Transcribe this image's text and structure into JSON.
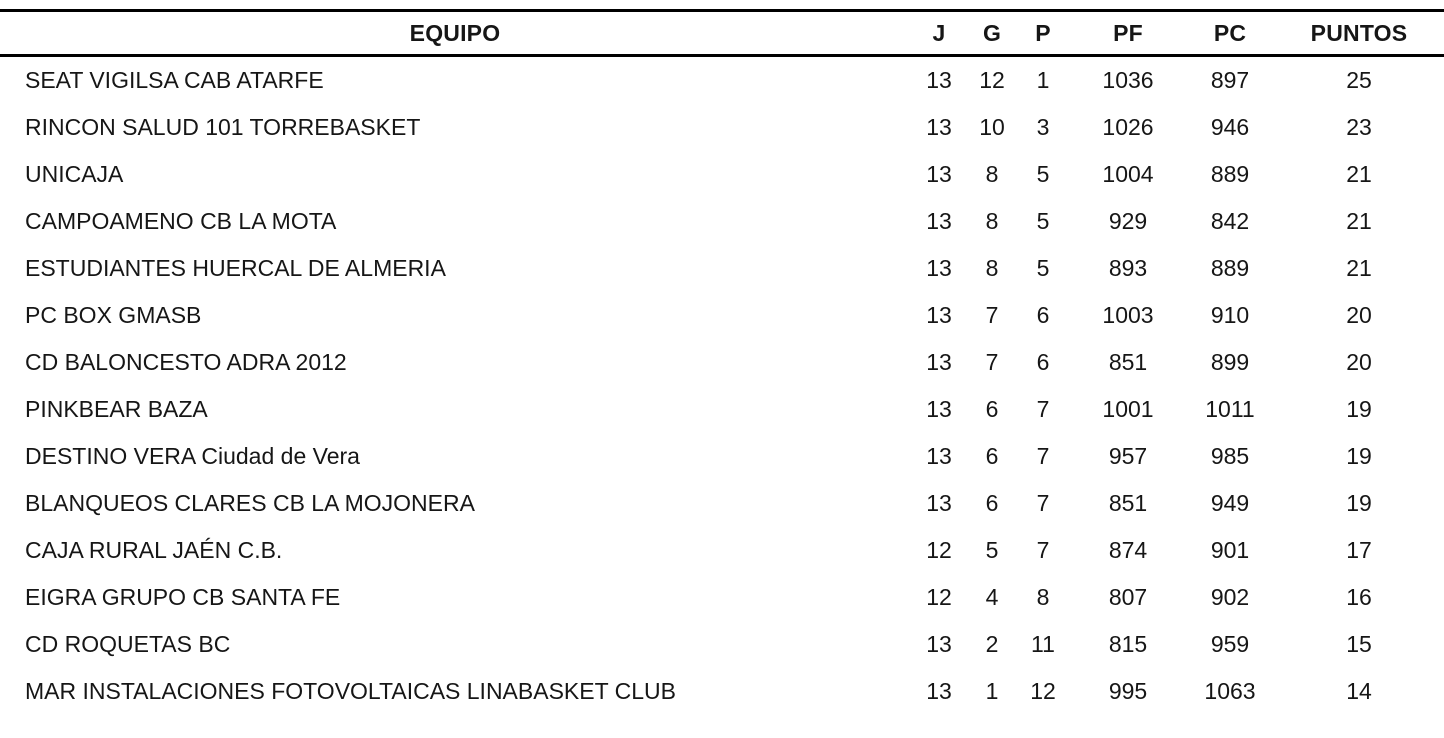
{
  "colors": {
    "background": "#ffffff",
    "text": "#161616",
    "rule": "#000000"
  },
  "table": {
    "headers": [
      "EQUIPO",
      "J",
      "G",
      "P",
      "PF",
      "PC",
      "PUNTOS"
    ],
    "rows": [
      {
        "team": "SEAT VIGILSA CAB ATARFE",
        "j": "13",
        "g": "12",
        "p": "1",
        "pf": "1036",
        "pc": "897",
        "puntos": "25"
      },
      {
        "team": "RINCON SALUD 101 TORREBASKET",
        "j": "13",
        "g": "10",
        "p": "3",
        "pf": "1026",
        "pc": "946",
        "puntos": "23"
      },
      {
        "team": "UNICAJA",
        "j": "13",
        "g": "8",
        "p": "5",
        "pf": "1004",
        "pc": "889",
        "puntos": "21"
      },
      {
        "team": "CAMPOAMENO CB LA MOTA",
        "j": "13",
        "g": "8",
        "p": "5",
        "pf": "929",
        "pc": "842",
        "puntos": "21"
      },
      {
        "team": "ESTUDIANTES HUERCAL DE ALMERIA",
        "j": "13",
        "g": "8",
        "p": "5",
        "pf": "893",
        "pc": "889",
        "puntos": "21"
      },
      {
        "team": "PC BOX GMASB",
        "j": "13",
        "g": "7",
        "p": "6",
        "pf": "1003",
        "pc": "910",
        "puntos": "20"
      },
      {
        "team": "CD BALONCESTO ADRA 2012",
        "j": "13",
        "g": "7",
        "p": "6",
        "pf": "851",
        "pc": "899",
        "puntos": "20"
      },
      {
        "team": "PINKBEAR BAZA",
        "j": "13",
        "g": "6",
        "p": "7",
        "pf": "1001",
        "pc": "1011",
        "puntos": "19"
      },
      {
        "team": "DESTINO VERA Ciudad de Vera",
        "j": "13",
        "g": "6",
        "p": "7",
        "pf": "957",
        "pc": "985",
        "puntos": "19"
      },
      {
        "team": "BLANQUEOS CLARES CB LA MOJONERA",
        "j": "13",
        "g": "6",
        "p": "7",
        "pf": "851",
        "pc": "949",
        "puntos": "19"
      },
      {
        "team": "CAJA RURAL JAÉN C.B.",
        "j": "12",
        "g": "5",
        "p": "7",
        "pf": "874",
        "pc": "901",
        "puntos": "17"
      },
      {
        "team": "EIGRA GRUPO CB SANTA FE",
        "j": "12",
        "g": "4",
        "p": "8",
        "pf": "807",
        "pc": "902",
        "puntos": "16"
      },
      {
        "team": "CD ROQUETAS BC",
        "j": "13",
        "g": "2",
        "p": "11",
        "pf": "815",
        "pc": "959",
        "puntos": "15"
      },
      {
        "team": "MAR INSTALACIONES FOTOVOLTAICAS LINABASKET CLUB",
        "j": "13",
        "g": "1",
        "p": "12",
        "pf": "995",
        "pc": "1063",
        "puntos": "14"
      }
    ]
  },
  "chart_data": {
    "type": "table",
    "title": "",
    "columns": [
      "EQUIPO",
      "J",
      "G",
      "P",
      "PF",
      "PC",
      "PUNTOS"
    ],
    "rows": [
      [
        "SEAT VIGILSA CAB ATARFE",
        13,
        12,
        1,
        1036,
        897,
        25
      ],
      [
        "RINCON SALUD 101 TORREBASKET",
        13,
        10,
        3,
        1026,
        946,
        23
      ],
      [
        "UNICAJA",
        13,
        8,
        5,
        1004,
        889,
        21
      ],
      [
        "CAMPOAMENO CB LA MOTA",
        13,
        8,
        5,
        929,
        842,
        21
      ],
      [
        "ESTUDIANTES HUERCAL DE ALMERIA",
        13,
        8,
        5,
        893,
        889,
        21
      ],
      [
        "PC BOX GMASB",
        13,
        7,
        6,
        1003,
        910,
        20
      ],
      [
        "CD BALONCESTO ADRA 2012",
        13,
        7,
        6,
        851,
        899,
        20
      ],
      [
        "PINKBEAR BAZA",
        13,
        6,
        7,
        1001,
        1011,
        19
      ],
      [
        "DESTINO VERA Ciudad de Vera",
        13,
        6,
        7,
        957,
        985,
        19
      ],
      [
        "BLANQUEOS CLARES CB LA MOJONERA",
        13,
        6,
        7,
        851,
        949,
        19
      ],
      [
        "CAJA RURAL JAÉN C.B.",
        12,
        5,
        7,
        874,
        901,
        17
      ],
      [
        "EIGRA GRUPO CB SANTA FE",
        12,
        4,
        8,
        807,
        902,
        16
      ],
      [
        "CD ROQUETAS BC",
        13,
        2,
        11,
        815,
        959,
        15
      ],
      [
        "MAR INSTALACIONES FOTOVOLTAICAS LINABASKET CLUB",
        13,
        1,
        12,
        995,
        1063,
        14
      ]
    ]
  }
}
